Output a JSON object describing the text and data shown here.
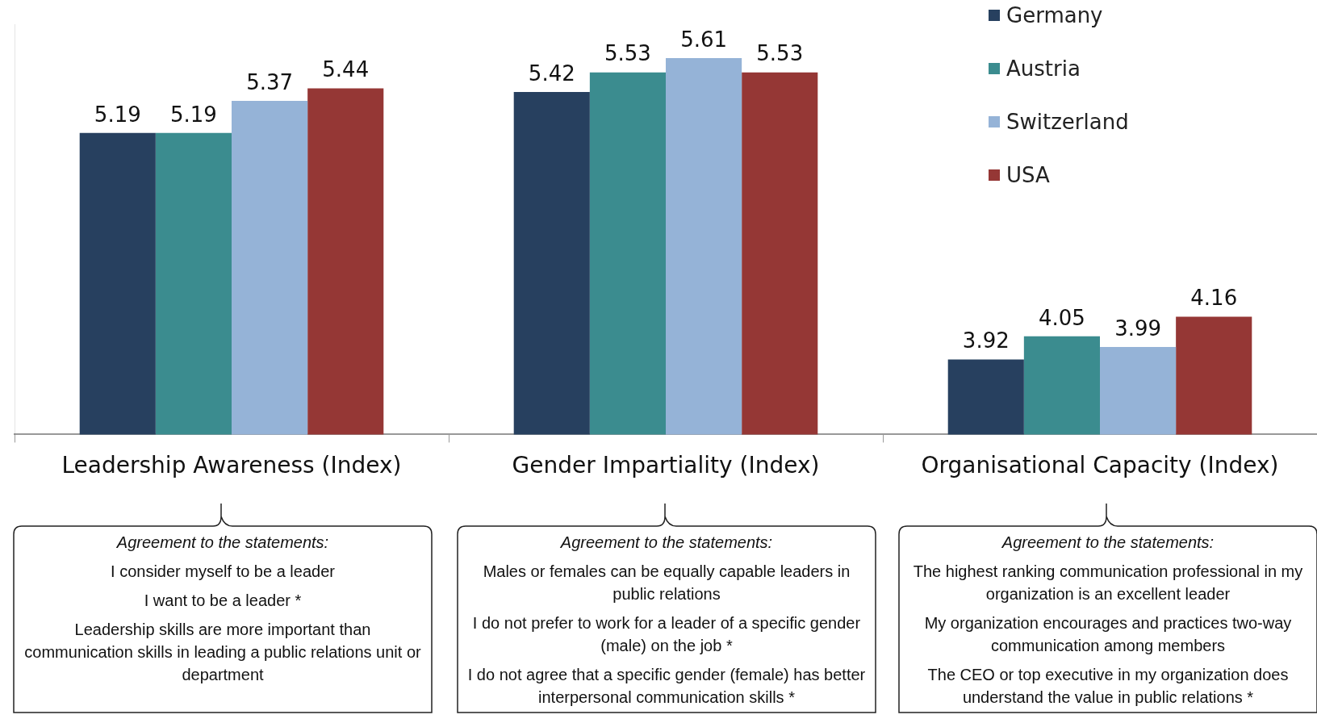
{
  "chart_data": {
    "type": "bar",
    "categories": [
      "Leadership Awareness (Index)",
      "Gender Impartiality (Index)",
      "Organisational Capacity (Index)"
    ],
    "series": [
      {
        "name": "Germany",
        "color": "#27405f",
        "values": [
          5.19,
          5.42,
          3.92
        ]
      },
      {
        "name": "Austria",
        "color": "#3b8c8f",
        "values": [
          5.19,
          5.53,
          4.05
        ]
      },
      {
        "name": "Switzerland",
        "color": "#95b3d7",
        "values": [
          5.37,
          5.61,
          3.99
        ]
      },
      {
        "name": "USA",
        "color": "#953735",
        "values": [
          5.44,
          5.53,
          4.16
        ]
      }
    ],
    "ylim": [
      3.5,
      5.8
    ],
    "data_labels": true,
    "grid": false,
    "legend": "top right",
    "annotations": [
      "Agreement to the statements:\nI consider myself to be a leader\nI want to be a leader *\nLeadership skills are more important than communication skills in leading a public relations unit or department",
      "Agreement to the statements:\nMales or females can be equally capable  leaders in public relations\nI do not prefer to work for a leader of a specific gender (male) on the job *\nI do not agree that a specific gender (female) has better interpersonal communication skills *",
      "Agreement to the statements:\nThe highest ranking communication professional in my organization is an excellent leader\nMy organization encourages and practices two-way communication among members\nThe CEO or top executive in my organization does understand the value in public relations *"
    ]
  }
}
